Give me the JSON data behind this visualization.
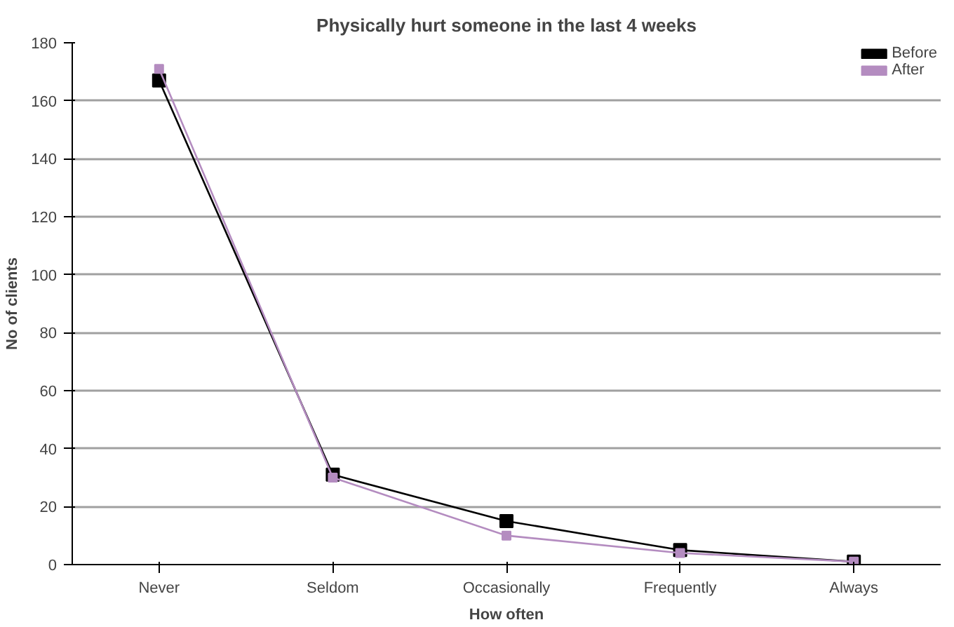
{
  "chart_data": {
    "type": "line",
    "title": "Physically hurt someone in the last 4 weeks",
    "xlabel": "How often",
    "ylabel": "No of clients",
    "categories": [
      "Never",
      "Seldom",
      "Occasionally",
      "Frequently",
      "Always"
    ],
    "series": [
      {
        "name": "Before",
        "color": "#000000",
        "values": [
          167,
          31,
          15,
          5,
          1
        ]
      },
      {
        "name": "After",
        "color": "#b48cc0",
        "values": [
          171,
          30,
          10,
          4,
          1
        ]
      }
    ],
    "ylim": [
      0,
      180
    ],
    "yticks": [
      0,
      20,
      40,
      60,
      80,
      100,
      120,
      140,
      160,
      180
    ],
    "grid": "y",
    "legend": "top right",
    "marker": "square",
    "line_style": "solid"
  }
}
